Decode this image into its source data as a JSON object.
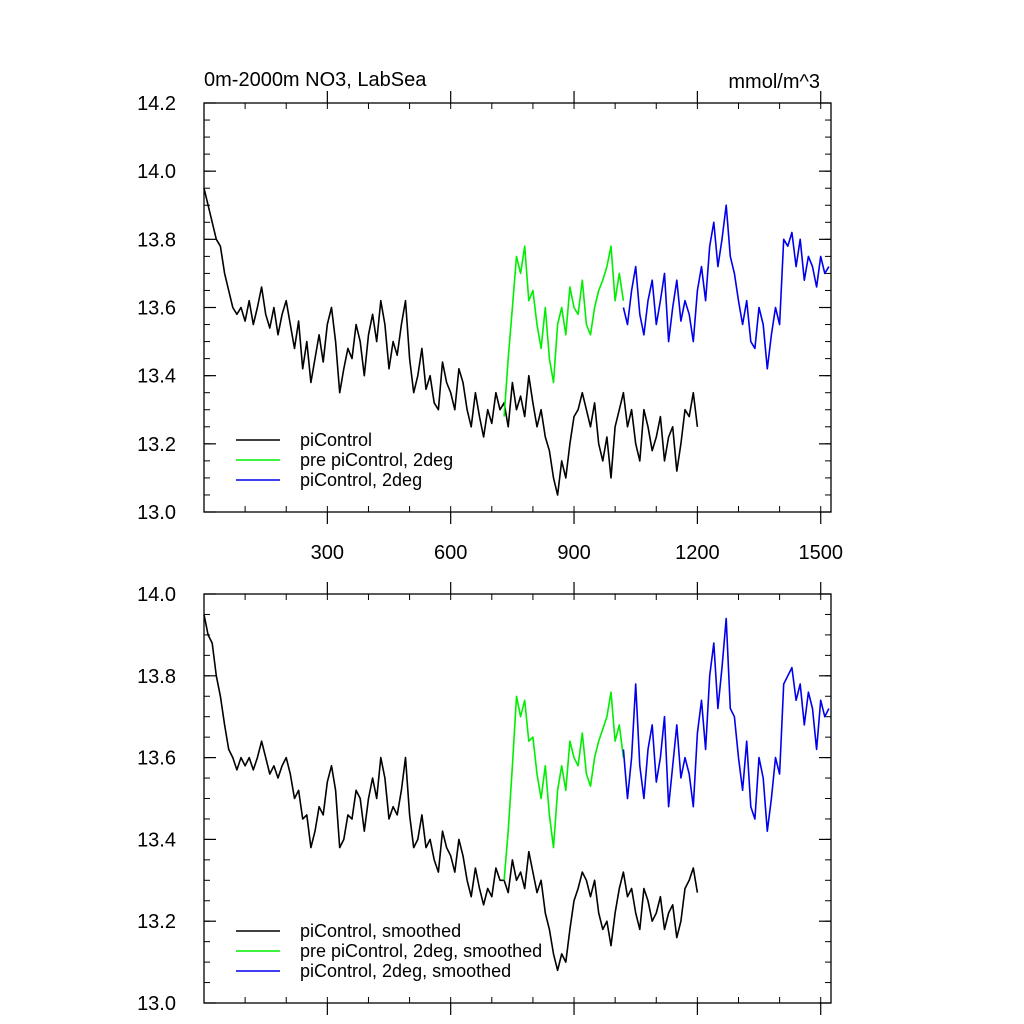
{
  "chart_data": [
    {
      "type": "line",
      "title": "0m-2000m NO3, LabSea",
      "units": "mmol/m^3",
      "xlim": [
        0,
        1525
      ],
      "ylim": [
        13.0,
        14.2
      ],
      "yticks": [
        "13.0",
        "13.2",
        "13.4",
        "13.6",
        "13.8",
        "14.0",
        "14.2"
      ],
      "xticks": [
        "300",
        "600",
        "900",
        "1200",
        "1500"
      ],
      "legend": {
        "position": "bottom-left"
      },
      "series": [
        {
          "name": "piControl",
          "color": "#000000",
          "x": [
            0,
            10,
            20,
            30,
            40,
            50,
            60,
            70,
            80,
            90,
            100,
            110,
            120,
            130,
            140,
            150,
            160,
            170,
            180,
            190,
            200,
            210,
            220,
            230,
            240,
            250,
            260,
            270,
            280,
            290,
            300,
            310,
            320,
            330,
            340,
            350,
            360,
            370,
            380,
            390,
            400,
            410,
            420,
            430,
            440,
            450,
            460,
            470,
            480,
            490,
            500,
            510,
            520,
            530,
            540,
            550,
            560,
            570,
            580,
            590,
            600,
            610,
            620,
            630,
            640,
            650,
            660,
            670,
            680,
            690,
            700,
            710,
            720,
            730,
            740,
            750,
            760,
            770,
            780,
            790,
            800,
            810,
            820,
            830,
            840,
            850,
            860,
            870,
            880,
            890,
            900,
            910,
            920,
            930,
            940,
            950,
            960,
            970,
            980,
            990,
            1000,
            1010,
            1020,
            1030,
            1040,
            1050,
            1060,
            1070,
            1080,
            1090,
            1100,
            1110,
            1120,
            1130,
            1140,
            1150,
            1160,
            1170,
            1180,
            1190,
            1200
          ],
          "y": [
            13.95,
            13.9,
            13.85,
            13.8,
            13.78,
            13.7,
            13.65,
            13.6,
            13.58,
            13.6,
            13.56,
            13.62,
            13.55,
            13.6,
            13.66,
            13.58,
            13.54,
            13.6,
            13.52,
            13.58,
            13.62,
            13.55,
            13.48,
            13.56,
            13.42,
            13.5,
            13.38,
            13.45,
            13.52,
            13.44,
            13.55,
            13.6,
            13.5,
            13.35,
            13.42,
            13.48,
            13.45,
            13.55,
            13.5,
            13.4,
            13.52,
            13.58,
            13.5,
            13.62,
            13.55,
            13.42,
            13.5,
            13.46,
            13.55,
            13.62,
            13.45,
            13.35,
            13.4,
            13.48,
            13.36,
            13.4,
            13.32,
            13.3,
            13.44,
            13.38,
            13.35,
            13.3,
            13.42,
            13.38,
            13.3,
            13.25,
            13.35,
            13.28,
            13.22,
            13.3,
            13.26,
            13.35,
            13.3,
            13.32,
            13.25,
            13.38,
            13.3,
            13.34,
            13.28,
            13.4,
            13.32,
            13.25,
            13.3,
            13.22,
            13.18,
            13.1,
            13.05,
            13.15,
            13.1,
            13.2,
            13.28,
            13.3,
            13.35,
            13.3,
            13.25,
            13.32,
            13.2,
            13.15,
            13.22,
            13.1,
            13.25,
            13.3,
            13.35,
            13.25,
            13.3,
            13.2,
            13.15,
            13.3,
            13.25,
            13.18,
            13.22,
            13.28,
            13.15,
            13.22,
            13.25,
            13.12,
            13.2,
            13.3,
            13.28,
            13.35,
            13.25
          ]
        },
        {
          "name": "pre piControl, 2deg",
          "color": "#00ee00",
          "x": [
            730,
            740,
            750,
            760,
            770,
            780,
            790,
            800,
            810,
            820,
            830,
            840,
            850,
            860,
            870,
            880,
            890,
            900,
            910,
            920,
            930,
            940,
            950,
            960,
            970,
            980,
            990,
            1000,
            1010,
            1020
          ],
          "y": [
            13.28,
            13.45,
            13.6,
            13.75,
            13.7,
            13.78,
            13.62,
            13.65,
            13.55,
            13.48,
            13.6,
            13.45,
            13.38,
            13.55,
            13.6,
            13.52,
            13.66,
            13.6,
            13.58,
            13.68,
            13.55,
            13.52,
            13.6,
            13.65,
            13.68,
            13.72,
            13.78,
            13.62,
            13.7,
            13.62
          ]
        },
        {
          "name": "piControl, 2deg",
          "color": "#0000ee",
          "x": [
            1020,
            1030,
            1040,
            1050,
            1060,
            1070,
            1080,
            1090,
            1100,
            1110,
            1120,
            1130,
            1140,
            1150,
            1160,
            1170,
            1180,
            1190,
            1200,
            1210,
            1220,
            1230,
            1240,
            1250,
            1260,
            1270,
            1280,
            1290,
            1300,
            1310,
            1320,
            1330,
            1340,
            1350,
            1360,
            1370,
            1380,
            1390,
            1400,
            1410,
            1420,
            1430,
            1440,
            1450,
            1460,
            1470,
            1480,
            1490,
            1500,
            1510,
            1520
          ],
          "y": [
            13.6,
            13.55,
            13.65,
            13.72,
            13.58,
            13.52,
            13.62,
            13.68,
            13.55,
            13.62,
            13.7,
            13.5,
            13.6,
            13.68,
            13.56,
            13.62,
            13.58,
            13.5,
            13.65,
            13.72,
            13.62,
            13.78,
            13.85,
            13.72,
            13.8,
            13.9,
            13.75,
            13.7,
            13.62,
            13.55,
            13.62,
            13.5,
            13.48,
            13.6,
            13.55,
            13.42,
            13.52,
            13.6,
            13.55,
            13.8,
            13.78,
            13.82,
            13.72,
            13.8,
            13.68,
            13.75,
            13.72,
            13.66,
            13.75,
            13.7,
            13.72
          ]
        }
      ]
    },
    {
      "type": "line",
      "xlim": [
        0,
        1525
      ],
      "ylim": [
        13.0,
        14.0
      ],
      "yticks": [
        "13.0",
        "13.2",
        "13.4",
        "13.6",
        "13.8",
        "14.0"
      ],
      "legend": {
        "position": "bottom-left"
      },
      "series": [
        {
          "name": "piControl, smoothed",
          "color": "#000000",
          "x": [
            0,
            10,
            20,
            30,
            40,
            50,
            60,
            70,
            80,
            90,
            100,
            110,
            120,
            130,
            140,
            150,
            160,
            170,
            180,
            190,
            200,
            210,
            220,
            230,
            240,
            250,
            260,
            270,
            280,
            290,
            300,
            310,
            320,
            330,
            340,
            350,
            360,
            370,
            380,
            390,
            400,
            410,
            420,
            430,
            440,
            450,
            460,
            470,
            480,
            490,
            500,
            510,
            520,
            530,
            540,
            550,
            560,
            570,
            580,
            590,
            600,
            610,
            620,
            630,
            640,
            650,
            660,
            670,
            680,
            690,
            700,
            710,
            720,
            730,
            740,
            750,
            760,
            770,
            780,
            790,
            800,
            810,
            820,
            830,
            840,
            850,
            860,
            870,
            880,
            890,
            900,
            910,
            920,
            930,
            940,
            950,
            960,
            970,
            980,
            990,
            1000,
            1010,
            1020,
            1030,
            1040,
            1050,
            1060,
            1070,
            1080,
            1090,
            1100,
            1110,
            1120,
            1130,
            1140,
            1150,
            1160,
            1170,
            1180,
            1190,
            1200
          ],
          "y": [
            13.95,
            13.9,
            13.88,
            13.8,
            13.75,
            13.68,
            13.62,
            13.6,
            13.57,
            13.6,
            13.58,
            13.6,
            13.57,
            13.6,
            13.64,
            13.6,
            13.56,
            13.58,
            13.55,
            13.58,
            13.6,
            13.56,
            13.5,
            13.52,
            13.45,
            13.46,
            13.38,
            13.42,
            13.48,
            13.46,
            13.54,
            13.58,
            13.52,
            13.38,
            13.4,
            13.46,
            13.45,
            13.52,
            13.5,
            13.42,
            13.5,
            13.55,
            13.5,
            13.6,
            13.55,
            13.45,
            13.48,
            13.46,
            13.52,
            13.6,
            13.46,
            13.38,
            13.4,
            13.46,
            13.38,
            13.4,
            13.35,
            13.32,
            13.42,
            13.38,
            13.36,
            13.32,
            13.4,
            13.36,
            13.3,
            13.26,
            13.33,
            13.28,
            13.24,
            13.28,
            13.26,
            13.33,
            13.3,
            13.3,
            13.27,
            13.35,
            13.3,
            13.32,
            13.28,
            13.37,
            13.32,
            13.27,
            13.3,
            13.22,
            13.18,
            13.12,
            13.08,
            13.12,
            13.1,
            13.18,
            13.25,
            13.28,
            13.32,
            13.3,
            13.26,
            13.3,
            13.22,
            13.18,
            13.2,
            13.14,
            13.22,
            13.28,
            13.32,
            13.26,
            13.28,
            13.22,
            13.18,
            13.28,
            13.25,
            13.2,
            13.22,
            13.26,
            13.18,
            13.22,
            13.24,
            13.16,
            13.2,
            13.28,
            13.3,
            13.33,
            13.27
          ]
        },
        {
          "name": "pre piControl, 2deg, smoothed",
          "color": "#00ee00",
          "x": [
            730,
            740,
            750,
            760,
            770,
            780,
            790,
            800,
            810,
            820,
            830,
            840,
            850,
            860,
            870,
            880,
            890,
            900,
            910,
            920,
            930,
            940,
            950,
            960,
            970,
            980,
            990,
            1000,
            1010,
            1020
          ],
          "y": [
            13.3,
            13.42,
            13.58,
            13.75,
            13.7,
            13.74,
            13.64,
            13.65,
            13.56,
            13.5,
            13.58,
            13.46,
            13.38,
            13.52,
            13.58,
            13.52,
            13.64,
            13.6,
            13.58,
            13.66,
            13.56,
            13.53,
            13.6,
            13.64,
            13.67,
            13.7,
            13.76,
            13.64,
            13.68,
            13.6
          ]
        },
        {
          "name": "piControl, 2deg, smoothed",
          "color": "#0000ee",
          "x": [
            1020,
            1030,
            1040,
            1050,
            1060,
            1070,
            1080,
            1090,
            1100,
            1110,
            1120,
            1130,
            1140,
            1150,
            1160,
            1170,
            1180,
            1190,
            1200,
            1210,
            1220,
            1230,
            1240,
            1250,
            1260,
            1270,
            1280,
            1290,
            1300,
            1310,
            1320,
            1330,
            1340,
            1350,
            1360,
            1370,
            1380,
            1390,
            1400,
            1410,
            1420,
            1430,
            1440,
            1450,
            1460,
            1470,
            1480,
            1490,
            1500,
            1510,
            1520
          ],
          "y": [
            13.62,
            13.5,
            13.6,
            13.78,
            13.58,
            13.5,
            13.62,
            13.68,
            13.54,
            13.6,
            13.7,
            13.48,
            13.58,
            13.68,
            13.55,
            13.6,
            13.56,
            13.48,
            13.66,
            13.74,
            13.62,
            13.8,
            13.88,
            13.72,
            13.82,
            13.94,
            13.72,
            13.7,
            13.6,
            13.52,
            13.64,
            13.48,
            13.45,
            13.6,
            13.55,
            13.42,
            13.5,
            13.6,
            13.56,
            13.78,
            13.8,
            13.82,
            13.74,
            13.78,
            13.68,
            13.76,
            13.72,
            13.62,
            13.74,
            13.7,
            13.72
          ]
        }
      ]
    }
  ]
}
